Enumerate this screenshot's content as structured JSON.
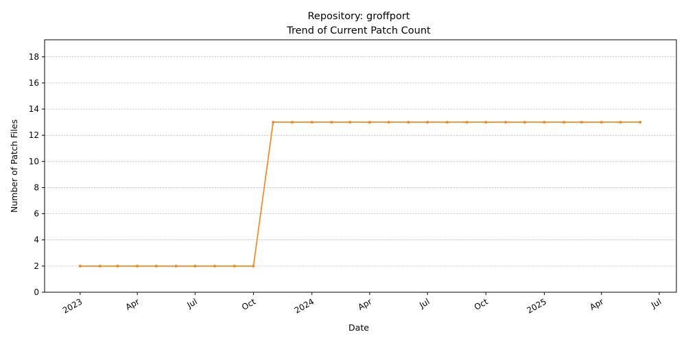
{
  "chart_data": {
    "type": "line",
    "title_line1": "Repository: groffport",
    "title_line2": "Trend of Current Patch Count",
    "xlabel": "Date",
    "ylabel": "Number of Patch Files",
    "ylim": [
      0,
      19.3
    ],
    "xlim": [
      "2022-11-06",
      "2025-07-28"
    ],
    "yticks": [
      0,
      2,
      4,
      6,
      8,
      10,
      12,
      14,
      16,
      18
    ],
    "xticks": [
      {
        "date": "2023-01-01",
        "label": "2023"
      },
      {
        "date": "2023-04-01",
        "label": "Apr"
      },
      {
        "date": "2023-07-01",
        "label": "Jul"
      },
      {
        "date": "2023-10-01",
        "label": "Oct"
      },
      {
        "date": "2024-01-01",
        "label": "2024"
      },
      {
        "date": "2024-04-01",
        "label": "Apr"
      },
      {
        "date": "2024-07-01",
        "label": "Jul"
      },
      {
        "date": "2024-10-01",
        "label": "Oct"
      },
      {
        "date": "2025-01-01",
        "label": "2025"
      },
      {
        "date": "2025-04-01",
        "label": "Apr"
      },
      {
        "date": "2025-07-01",
        "label": "Jul"
      }
    ],
    "grid": "horizontal dashed",
    "line_color": "#ff7f0e",
    "series": [
      {
        "x": [
          "2023-01-01",
          "2023-02-01",
          "2023-03-01",
          "2023-04-01",
          "2023-05-01",
          "2023-06-01",
          "2023-07-01",
          "2023-08-01",
          "2023-09-01",
          "2023-10-01",
          "2023-11-01",
          "2023-12-01",
          "2024-01-01",
          "2024-02-01",
          "2024-03-01",
          "2024-04-01",
          "2024-05-01",
          "2024-06-01",
          "2024-07-01",
          "2024-08-01",
          "2024-09-01",
          "2024-10-01",
          "2024-11-01",
          "2024-12-01",
          "2025-01-01",
          "2025-02-01",
          "2025-03-01",
          "2025-04-01",
          "2025-05-01",
          "2025-06-01"
        ],
        "values": [
          2,
          2,
          2,
          2,
          2,
          2,
          2,
          2,
          2,
          2,
          13,
          13,
          13,
          13,
          13,
          13,
          13,
          13,
          13,
          13,
          13,
          13,
          13,
          13,
          13,
          13,
          13,
          13,
          13,
          13
        ]
      }
    ]
  }
}
